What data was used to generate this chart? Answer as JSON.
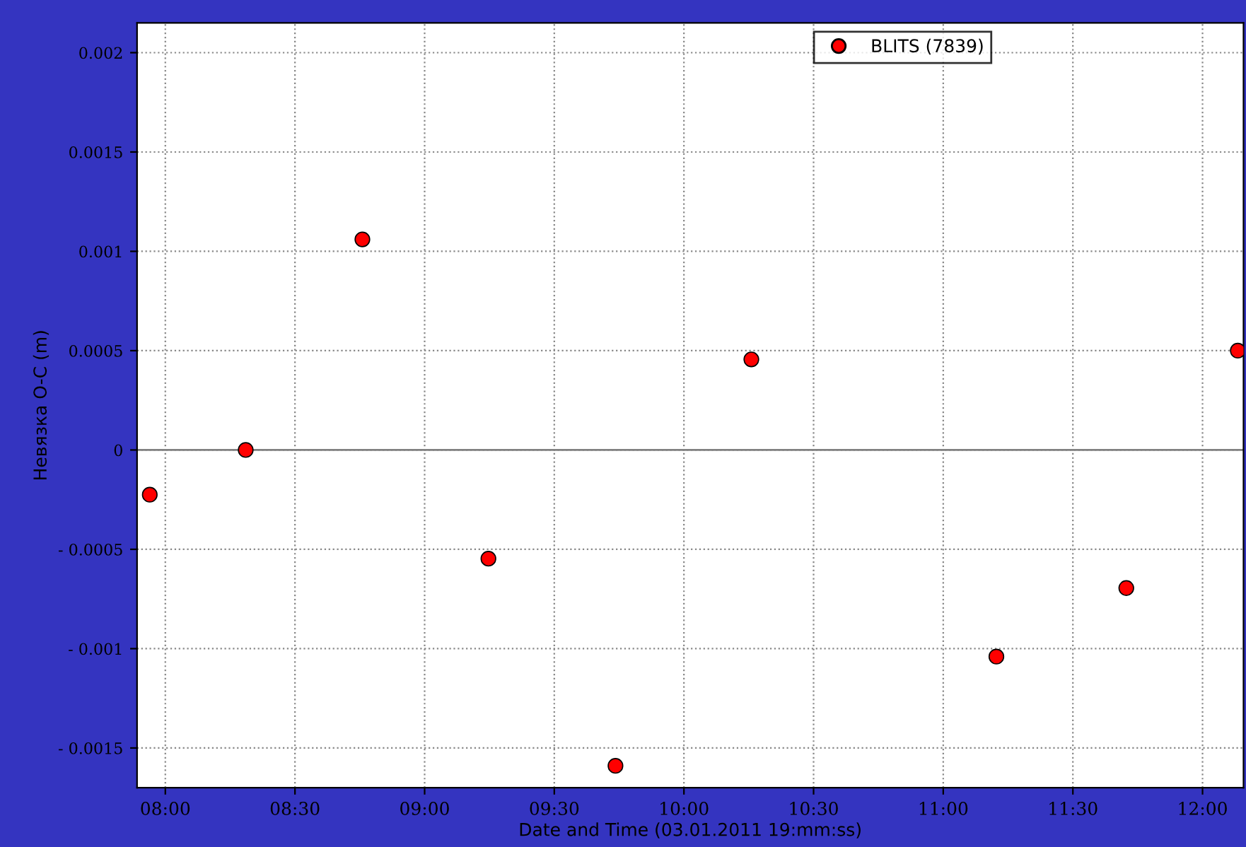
{
  "chart_data": {
    "type": "scatter",
    "xlabel": "Date and Time (03.01.2011 19:mm:ss)",
    "ylabel": "Невязка O-C (m)",
    "x": [
      7.94,
      8.31,
      8.76,
      9.246,
      9.736,
      10.26,
      11.205,
      11.706,
      12.136
    ],
    "series": [
      {
        "name": "BLITS (7839)",
        "color": "#ff0000",
        "values": [
          -0.000225,
          0,
          0.00106,
          -0.000547,
          -0.00159,
          0.000456,
          -0.00104,
          -0.000695,
          0.0005
        ]
      }
    ],
    "xlim": [
      7.891,
      12.158
    ],
    "xticks": [
      {
        "value": 8,
        "label": "08:00"
      },
      {
        "value": 8.5,
        "label": "08:30"
      },
      {
        "value": 9,
        "label": "09:00"
      },
      {
        "value": 9.5,
        "label": "09:30"
      },
      {
        "value": 10,
        "label": "10:00"
      },
      {
        "value": 10.5,
        "label": "10:30"
      },
      {
        "value": 11,
        "label": "11:00"
      },
      {
        "value": 11.5,
        "label": "11:30"
      },
      {
        "value": 12,
        "label": "12:00"
      }
    ],
    "ylim": [
      -0.0017,
      0.00215
    ],
    "yticks": [
      {
        "value": -0.0015,
        "label": "- 0.0015"
      },
      {
        "value": -0.001,
        "label": "- 0.001"
      },
      {
        "value": -0.0005,
        "label": "- 0.0005"
      },
      0,
      0.0005,
      0.001,
      0.0015,
      0.002
    ],
    "ref_lines": [
      {
        "axis": "y",
        "value": 0,
        "label": null,
        "color": "#808080",
        "line_style": "solid"
      }
    ],
    "grid": true,
    "legend": "top right",
    "marker": "circle"
  }
}
